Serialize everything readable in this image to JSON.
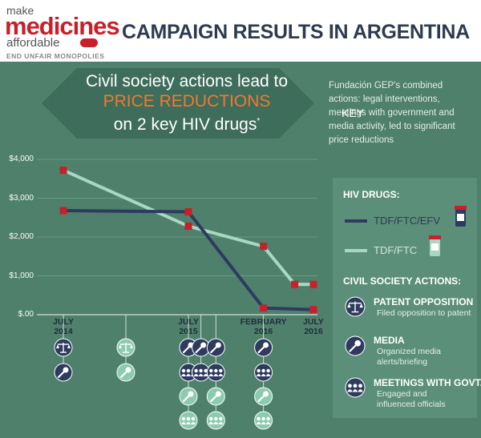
{
  "logo": {
    "make": "make",
    "medicines": "medicines",
    "affordable": "affordable",
    "tagline": "END UNFAIR MONOPOLIES"
  },
  "title": "CAMPAIGN RESULTS IN ARGENTINA",
  "headline": {
    "line1": "Civil society actions lead to",
    "line2": "PRICE REDUCTIONS",
    "line3": "on 2 key HIV drugs",
    "footnote": "*"
  },
  "intro": "Fundación GEP's combined actions: legal interventions, meetings with government and media activity, led to significant price reductions",
  "key": {
    "title": "KEY",
    "hiv_heading": "HIV DRUGS:",
    "drug1": "TDF/FTC/EFV",
    "drug2": "TDF/FTC",
    "actions_heading": "CIVIL SOCIETY ACTIONS:",
    "actions": [
      {
        "title": "PATENT OPPOSITION",
        "desc": "Filed opposition to patent",
        "icon": "scales-icon"
      },
      {
        "title": "MEDIA",
        "desc": "Organized media alerts/briefing",
        "icon": "microphone-icon"
      },
      {
        "title": "MEETINGS WITH GOVT.",
        "desc": "Engaged and influenced officials",
        "icon": "meeting-icon"
      }
    ]
  },
  "colors": {
    "panel": "#4e806b",
    "dark_line": "#2e3b5e",
    "light_line": "#a9d7c4",
    "marker": "#c8202a",
    "title": "#2e3b4e",
    "highlight": "#f07a2e"
  },
  "chart_data": {
    "type": "line",
    "ylim": [
      0,
      4000
    ],
    "y_ticks": [
      "$4,000",
      "$3,000",
      "$2,000",
      "$1,000",
      "$.00"
    ],
    "x_ticks": [
      {
        "label": "JULY\n2014",
        "x": 2014.5
      },
      {
        "label": "JULY\n2015",
        "x": 2015.5
      },
      {
        "label": "FEBRUARY\n2016",
        "x": 2016.1
      },
      {
        "label": "JULY\n2016",
        "x": 2016.5
      }
    ],
    "series": [
      {
        "name": "TDF/FTC/EFV",
        "color": "#2e3b5e",
        "points": [
          [
            2014.5,
            2680
          ],
          [
            2015.5,
            2650
          ],
          [
            2016.1,
            170
          ],
          [
            2016.5,
            130
          ]
        ]
      },
      {
        "name": "TDF/FTC",
        "color": "#a9d7c4",
        "points": [
          [
            2014.5,
            3720
          ],
          [
            2015.5,
            2280
          ],
          [
            2016.1,
            1760
          ],
          [
            2016.35,
            780
          ],
          [
            2016.5,
            780
          ]
        ]
      }
    ]
  },
  "timeline_columns": [
    {
      "x": 2014.5,
      "icons": [
        [
          "scales",
          "dark"
        ],
        [
          "mic",
          "dark"
        ]
      ]
    },
    {
      "x": 2015.0,
      "icons": [
        [
          "scales",
          "light"
        ],
        [
          "mic",
          "light"
        ]
      ]
    },
    {
      "x": 2015.5,
      "icons": [
        [
          "mic",
          "dark"
        ],
        [
          "meeting",
          "dark"
        ],
        [
          "mic",
          "light"
        ],
        [
          "meeting",
          "light"
        ]
      ]
    },
    {
      "x": 2015.6,
      "icons": [
        [
          "mic",
          "dark"
        ],
        [
          "meeting",
          "dark"
        ]
      ]
    },
    {
      "x": 2015.72,
      "icons": [
        [
          "mic",
          "dark"
        ],
        [
          "meeting",
          "dark"
        ],
        [
          "mic",
          "light"
        ],
        [
          "meeting",
          "light"
        ]
      ]
    },
    {
      "x": 2016.1,
      "icons": [
        [
          "mic",
          "dark"
        ],
        [
          "meeting",
          "dark"
        ],
        [
          "mic",
          "light"
        ],
        [
          "meeting",
          "light"
        ]
      ]
    }
  ]
}
